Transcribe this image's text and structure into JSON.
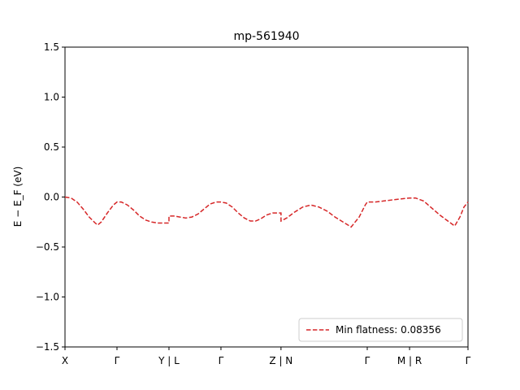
{
  "chart_data": {
    "type": "line",
    "title": "mp-561940",
    "xlabel": "",
    "ylabel": "E − E_F (eV)",
    "ylim": [
      -1.5,
      1.5
    ],
    "yticks": [
      -1.5,
      -1.0,
      -0.5,
      0.0,
      0.5,
      1.0,
      1.5
    ],
    "ytick_labels": [
      "−1.5",
      "−1.0",
      "−0.5",
      "0.0",
      "0.5",
      "1.0",
      "1.5"
    ],
    "xlim": [
      0,
      100
    ],
    "kpoints": [
      {
        "label": "X",
        "x": 0
      },
      {
        "label": "Γ",
        "x": 12.9
      },
      {
        "label": "Y | L",
        "x": 25.8
      },
      {
        "label": "Γ",
        "x": 38.7
      },
      {
        "label": "Z | N",
        "x": 53.6
      },
      {
        "label": "Γ",
        "x": 75.0
      },
      {
        "label": "M | R",
        "x": 85.5
      },
      {
        "label": "Γ",
        "x": 100
      }
    ],
    "grid": false,
    "legend_position": "lower-right",
    "series": [
      {
        "name": "Min flatness: 0.08356",
        "color": "#d62728",
        "style": "dashed",
        "x": [
          0,
          1.5,
          3,
          4.5,
          6,
          7.5,
          8.1,
          9,
          10.5,
          12,
          12.9,
          14,
          15.5,
          17,
          18.5,
          20,
          21.5,
          23,
          24.5,
          25.8,
          25.8,
          27,
          28.5,
          30,
          31.5,
          33,
          34.5,
          36,
          37.5,
          38.7,
          40,
          41.5,
          43,
          44.5,
          46,
          47.3,
          48.5,
          50,
          51.5,
          53.0,
          53.6,
          53.6,
          55,
          57,
          59,
          61,
          63,
          65,
          67,
          69,
          71,
          73,
          74.5,
          75,
          77,
          79,
          81,
          83,
          85.5,
          87,
          89,
          91,
          93,
          95,
          96.7,
          98,
          99,
          100
        ],
        "y": [
          0.0,
          -0.01,
          -0.05,
          -0.12,
          -0.2,
          -0.26,
          -0.28,
          -0.25,
          -0.16,
          -0.08,
          -0.05,
          -0.05,
          -0.08,
          -0.13,
          -0.19,
          -0.23,
          -0.25,
          -0.26,
          -0.26,
          -0.26,
          -0.19,
          -0.19,
          -0.2,
          -0.21,
          -0.2,
          -0.17,
          -0.12,
          -0.07,
          -0.05,
          -0.05,
          -0.06,
          -0.1,
          -0.16,
          -0.21,
          -0.24,
          -0.24,
          -0.22,
          -0.18,
          -0.16,
          -0.16,
          -0.16,
          -0.24,
          -0.21,
          -0.15,
          -0.1,
          -0.08,
          -0.1,
          -0.14,
          -0.2,
          -0.25,
          -0.3,
          -0.2,
          -0.08,
          -0.05,
          -0.05,
          -0.04,
          -0.03,
          -0.02,
          -0.01,
          -0.01,
          -0.04,
          -0.11,
          -0.18,
          -0.24,
          -0.29,
          -0.2,
          -0.1,
          -0.05
        ]
      }
    ]
  }
}
